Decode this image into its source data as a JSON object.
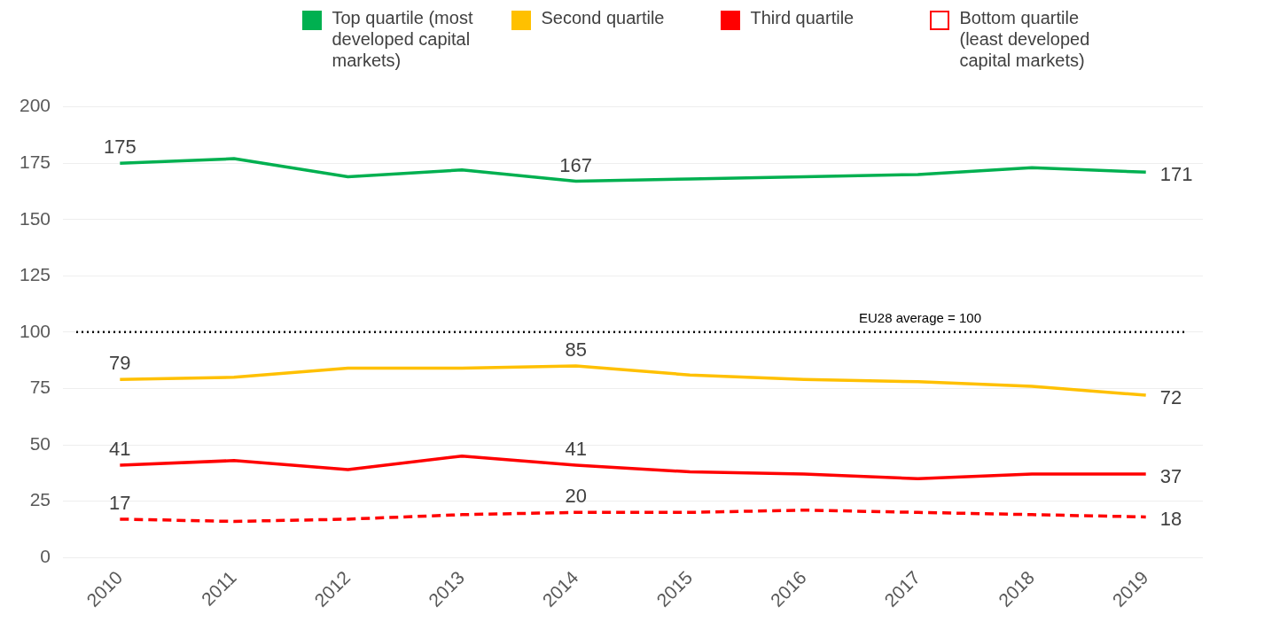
{
  "chart_data": {
    "type": "line",
    "categories": [
      "2010",
      "2011",
      "2012",
      "2013",
      "2014",
      "2015",
      "2016",
      "2017",
      "2018",
      "2019"
    ],
    "series": [
      {
        "name": "Top quartile (most developed capital markets)",
        "color": "#00b050",
        "values": [
          175,
          177,
          169,
          172,
          167,
          168,
          169,
          170,
          173,
          171
        ],
        "value_labels": [
          "175",
          null,
          null,
          null,
          "167",
          null,
          null,
          null,
          null,
          "171"
        ],
        "line_style": "solid"
      },
      {
        "name": "Second quartile",
        "color": "#ffc000",
        "values": [
          79,
          80,
          84,
          84,
          85,
          81,
          79,
          78,
          76,
          72
        ],
        "value_labels": [
          "79",
          null,
          null,
          null,
          "85",
          null,
          null,
          null,
          null,
          "72"
        ],
        "line_style": "solid"
      },
      {
        "name": "Third quartile",
        "color": "#ff0000",
        "values": [
          41,
          43,
          39,
          45,
          41,
          38,
          37,
          35,
          37,
          37
        ],
        "value_labels": [
          "41",
          null,
          null,
          null,
          "41",
          null,
          null,
          null,
          null,
          "37"
        ],
        "line_style": "solid"
      },
      {
        "name": "Bottom quartile (least developed capital markets)",
        "color": "#ff0000",
        "values": [
          17,
          16,
          17,
          19,
          20,
          20,
          21,
          20,
          19,
          18
        ],
        "value_labels": [
          "17",
          null,
          null,
          null,
          "20",
          null,
          null,
          null,
          null,
          "18"
        ],
        "line_style": "dashed"
      }
    ],
    "ylim": [
      0,
      200
    ],
    "yticks": [
      0,
      25,
      50,
      75,
      100,
      125,
      150,
      175,
      200
    ],
    "grid": "y",
    "legend": "top",
    "marker": "none",
    "ref_lines": [
      {
        "axis": "y",
        "value": 100,
        "label": "EU28 average = 100",
        "color": "#000000",
        "line_style": "dotted"
      }
    ]
  }
}
